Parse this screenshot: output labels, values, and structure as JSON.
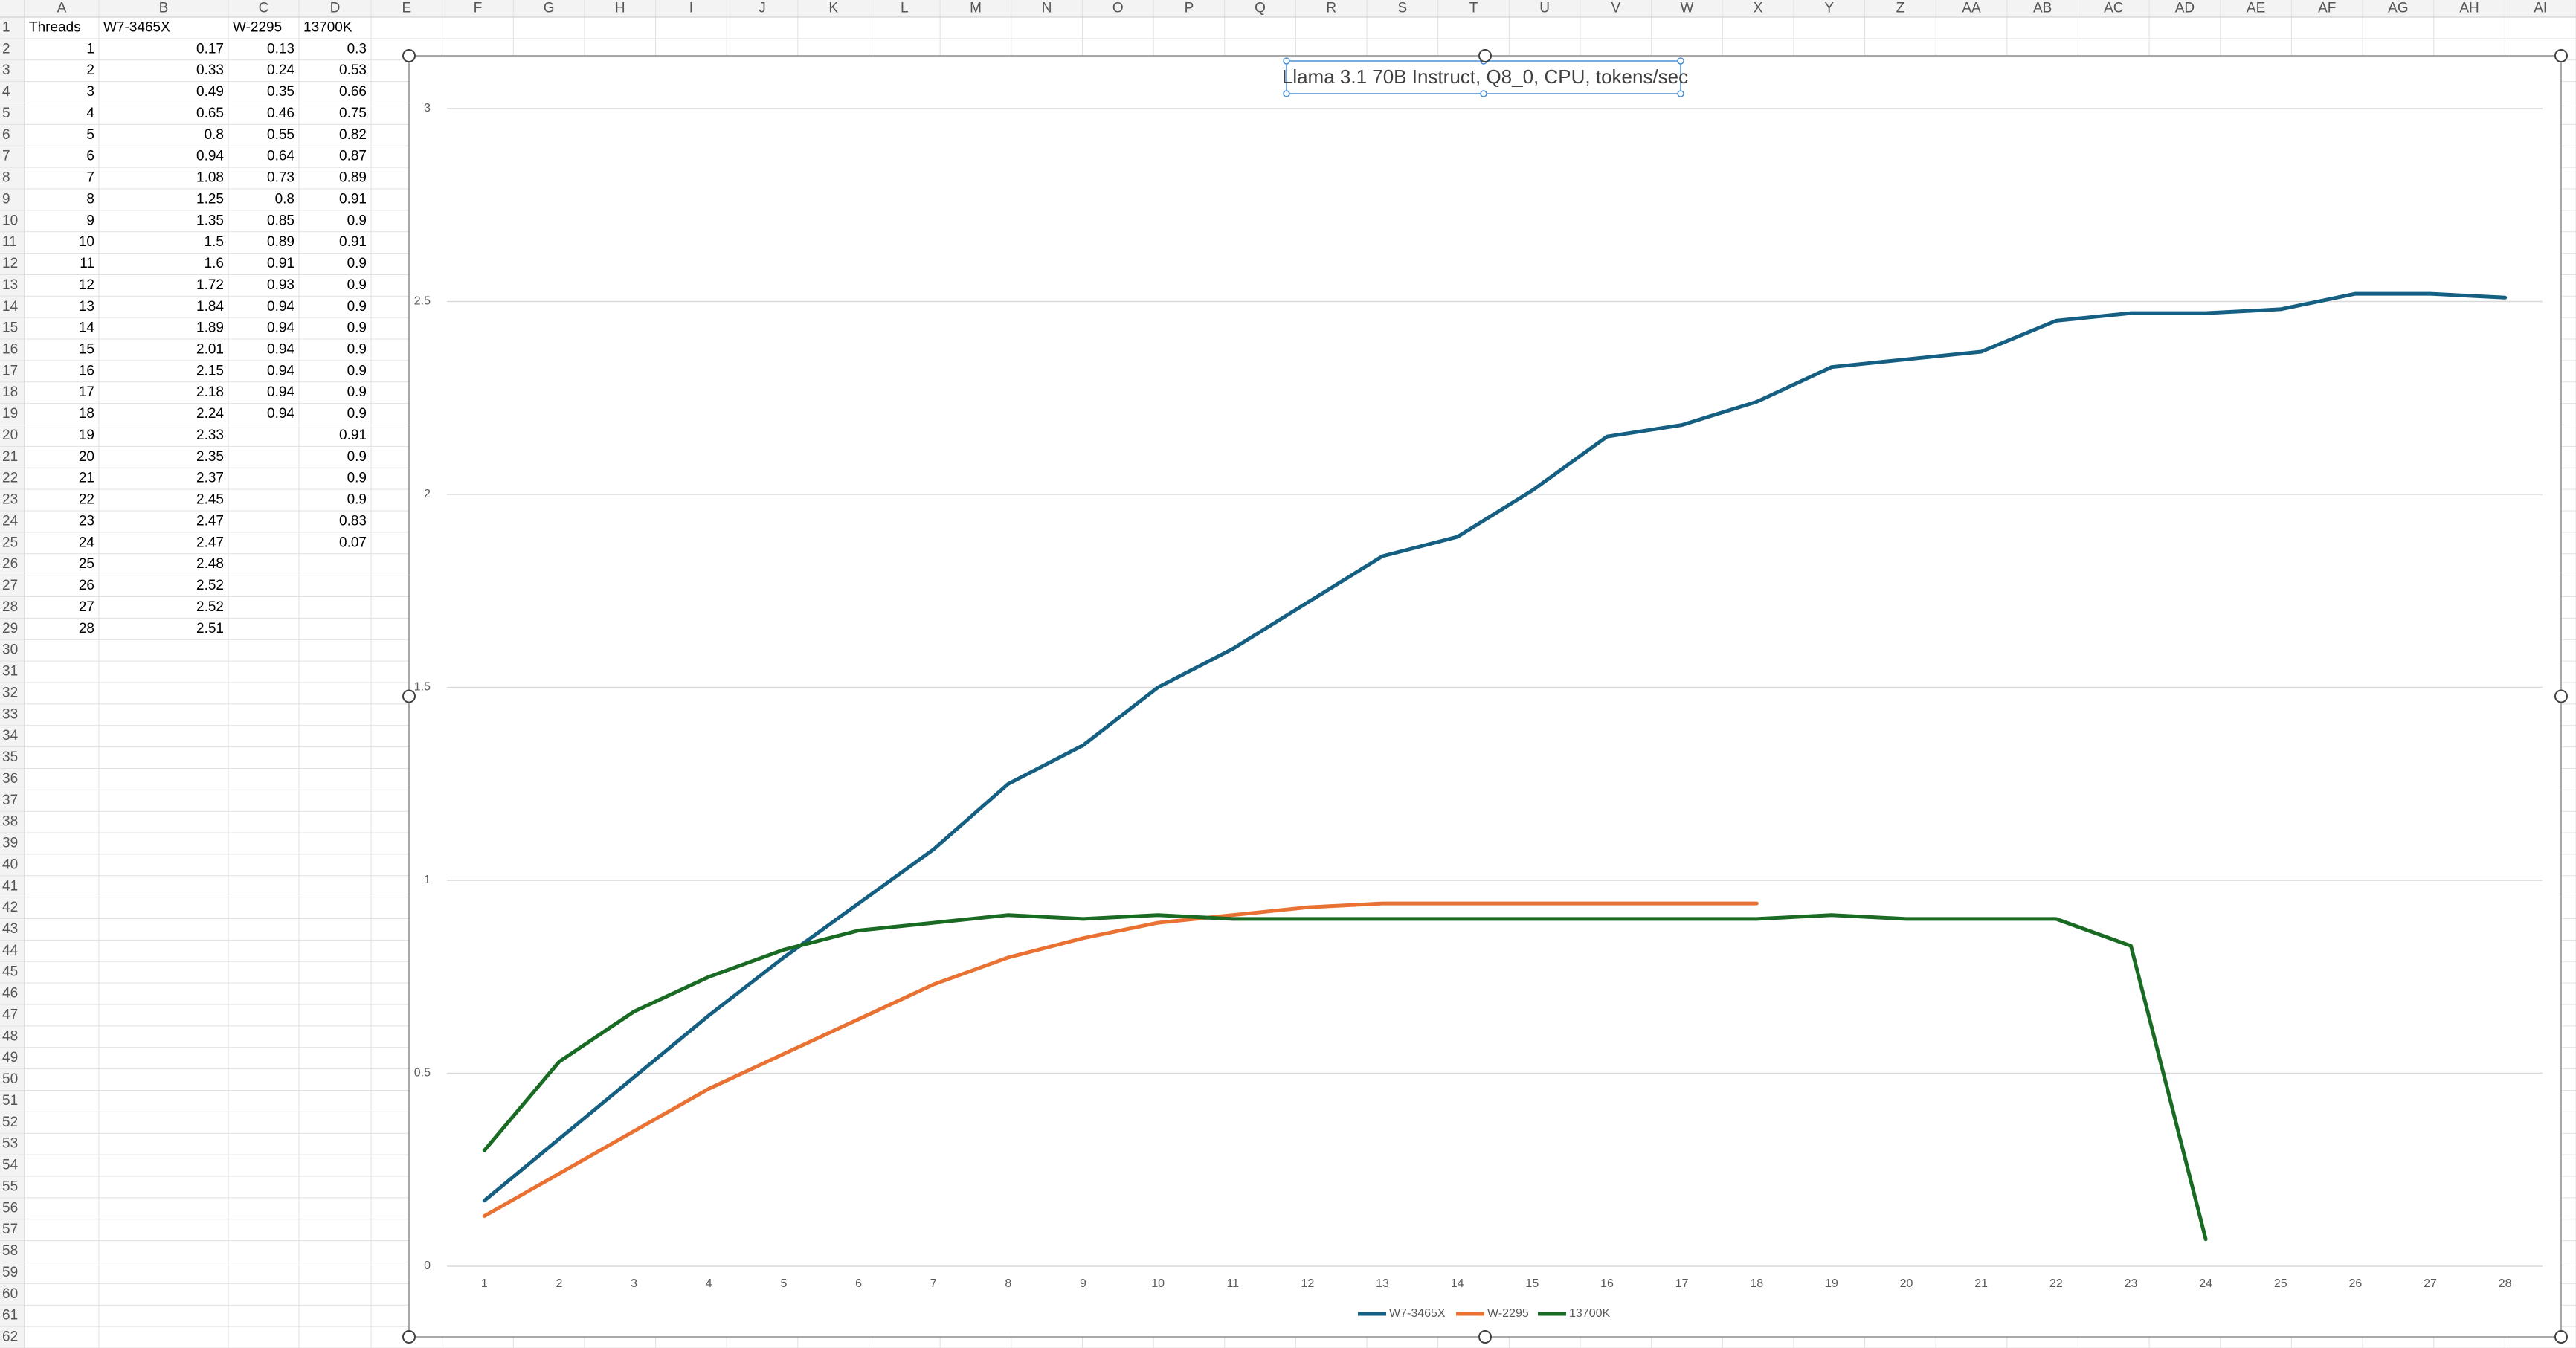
{
  "columns": [
    "A",
    "B",
    "C",
    "D",
    "E",
    "F",
    "G",
    "H",
    "I",
    "J",
    "K",
    "L",
    "M",
    "N",
    "O",
    "P",
    "Q",
    "R",
    "S",
    "T",
    "U",
    "V",
    "W",
    "X",
    "Y",
    "Z",
    "AA",
    "AB",
    "AC",
    "AD",
    "AE",
    "AF",
    "AG",
    "AH",
    "AI"
  ],
  "row_numbers": [
    1,
    2,
    3,
    4,
    5,
    6,
    7,
    8,
    9,
    10,
    11,
    12,
    13,
    14,
    15,
    16,
    17,
    18,
    19,
    20,
    21,
    22,
    23,
    24,
    25,
    26,
    27,
    28,
    29,
    30,
    31,
    32,
    33,
    34,
    35,
    36,
    37,
    38,
    39,
    40,
    41,
    42,
    43,
    44,
    45,
    46,
    47,
    48,
    49,
    50,
    51,
    52,
    53,
    54,
    55,
    56,
    57,
    58,
    59,
    60,
    61,
    62
  ],
  "sheet": {
    "header": [
      "Threads",
      "W7-3465X",
      "W-2295",
      "13700K"
    ],
    "rows": [
      [
        1,
        0.17,
        0.13,
        0.3
      ],
      [
        2,
        0.33,
        0.24,
        0.53
      ],
      [
        3,
        0.49,
        0.35,
        0.66
      ],
      [
        4,
        0.65,
        0.46,
        0.75
      ],
      [
        5,
        0.8,
        0.55,
        0.82
      ],
      [
        6,
        0.94,
        0.64,
        0.87
      ],
      [
        7,
        1.08,
        0.73,
        0.89
      ],
      [
        8,
        1.25,
        0.8,
        0.91
      ],
      [
        9,
        1.35,
        0.85,
        0.9
      ],
      [
        10,
        1.5,
        0.89,
        0.91
      ],
      [
        11,
        1.6,
        0.91,
        0.9
      ],
      [
        12,
        1.72,
        0.93,
        0.9
      ],
      [
        13,
        1.84,
        0.94,
        0.9
      ],
      [
        14,
        1.89,
        0.94,
        0.9
      ],
      [
        15,
        2.01,
        0.94,
        0.9
      ],
      [
        16,
        2.15,
        0.94,
        0.9
      ],
      [
        17,
        2.18,
        0.94,
        0.9
      ],
      [
        18,
        2.24,
        0.94,
        0.9
      ],
      [
        19,
        2.33,
        null,
        0.91
      ],
      [
        20,
        2.35,
        null,
        0.9
      ],
      [
        21,
        2.37,
        null,
        0.9
      ],
      [
        22,
        2.45,
        null,
        0.9
      ],
      [
        23,
        2.47,
        null,
        0.83
      ],
      [
        24,
        2.47,
        null,
        0.07
      ],
      [
        25,
        2.48,
        null,
        null
      ],
      [
        26,
        2.52,
        null,
        null
      ],
      [
        27,
        2.52,
        null,
        null
      ],
      [
        28,
        2.51,
        null,
        null
      ]
    ]
  },
  "chart_data": {
    "type": "line",
    "title": "Llama 3.1 70B Instruct, Q8_0, CPU, tokens/sec",
    "categories": [
      1,
      2,
      3,
      4,
      5,
      6,
      7,
      8,
      9,
      10,
      11,
      12,
      13,
      14,
      15,
      16,
      17,
      18,
      19,
      20,
      21,
      22,
      23,
      24,
      25,
      26,
      27,
      28
    ],
    "series": [
      {
        "name": "W7-3465X",
        "color": "#156082",
        "values": [
          0.17,
          0.33,
          0.49,
          0.65,
          0.8,
          0.94,
          1.08,
          1.25,
          1.35,
          1.5,
          1.6,
          1.72,
          1.84,
          1.89,
          2.01,
          2.15,
          2.18,
          2.24,
          2.33,
          2.35,
          2.37,
          2.45,
          2.47,
          2.47,
          2.48,
          2.52,
          2.52,
          2.51
        ]
      },
      {
        "name": "W-2295",
        "color": "#e97132",
        "values": [
          0.13,
          0.24,
          0.35,
          0.46,
          0.55,
          0.64,
          0.73,
          0.8,
          0.85,
          0.89,
          0.91,
          0.93,
          0.94,
          0.94,
          0.94,
          0.94,
          0.94,
          0.94,
          null,
          null,
          null,
          null,
          null,
          null,
          null,
          null,
          null,
          null
        ]
      },
      {
        "name": "13700K",
        "color": "#196b24",
        "values": [
          0.3,
          0.53,
          0.66,
          0.75,
          0.82,
          0.87,
          0.89,
          0.91,
          0.9,
          0.91,
          0.9,
          0.9,
          0.9,
          0.9,
          0.9,
          0.9,
          0.9,
          0.9,
          0.91,
          0.9,
          0.9,
          0.9,
          0.83,
          0.07,
          null,
          null,
          null,
          null
        ]
      }
    ],
    "ylim": [
      0,
      3
    ],
    "yticks": [
      0,
      0.5,
      1,
      1.5,
      2,
      2.5,
      3
    ],
    "grid": true,
    "legend": "bottom"
  }
}
